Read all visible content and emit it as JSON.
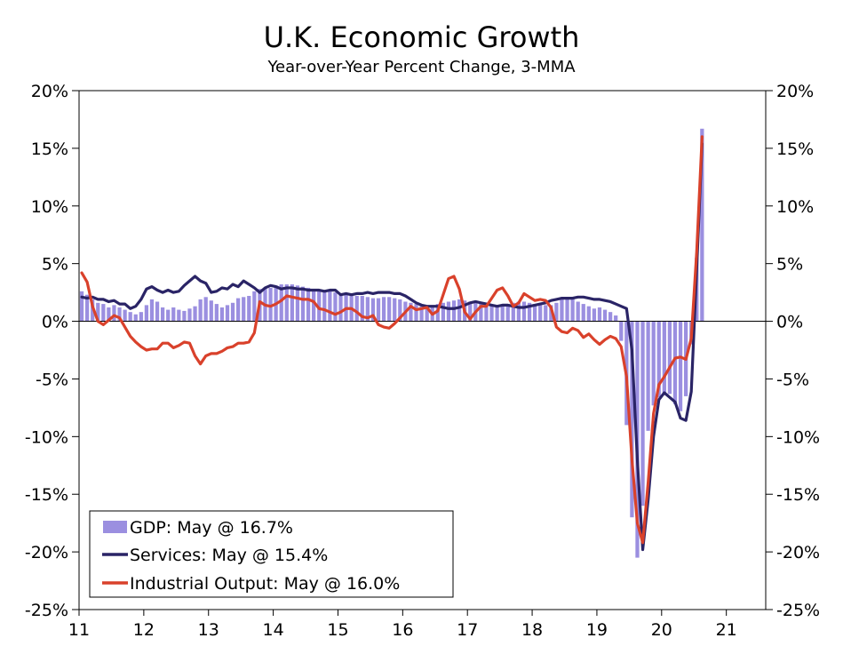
{
  "chart_data": {
    "type": "bar",
    "title": "U.K. Economic Growth",
    "subtitle": "Year-over-Year Percent Change, 3-MMA",
    "xlabel": "",
    "ylabel": "",
    "ylim": [
      -25,
      20
    ],
    "y_ticks": [
      20,
      15,
      10,
      5,
      0,
      -5,
      -10,
      -15,
      -20,
      -25
    ],
    "y_tick_labels": [
      "20%",
      "15%",
      "10%",
      "5%",
      "0%",
      "-5%",
      "-10%",
      "-15%",
      "-20%",
      "-25%"
    ],
    "x_start_year": 2011,
    "x_tick_labels": [
      "11",
      "12",
      "13",
      "14",
      "15",
      "16",
      "17",
      "18",
      "19",
      "20",
      "21"
    ],
    "legend": [
      {
        "label": "GDP: May @ 16.7%",
        "kind": "bar",
        "color": "#9b8fe0"
      },
      {
        "label": "Services: May @ 15.4%",
        "kind": "line",
        "color": "#2a2466"
      },
      {
        "label": "Industrial Output: May @ 16.0%",
        "kind": "line",
        "color": "#d9412b"
      }
    ],
    "series": [
      {
        "name": "GDP",
        "type": "bar",
        "color": "#9b8fe0",
        "values": [
          2.6,
          2.3,
          1.9,
          1.6,
          1.5,
          1.2,
          1.4,
          1.2,
          1.0,
          0.8,
          0.6,
          0.8,
          1.4,
          1.9,
          1.7,
          1.2,
          1.0,
          1.2,
          1.0,
          0.9,
          1.1,
          1.3,
          1.9,
          2.1,
          1.8,
          1.5,
          1.2,
          1.4,
          1.6,
          2.0,
          2.1,
          2.2,
          2.6,
          2.8,
          2.9,
          2.9,
          3.1,
          3.2,
          3.2,
          3.2,
          3.1,
          3.0,
          2.9,
          2.8,
          2.7,
          2.6,
          2.6,
          2.5,
          2.4,
          2.4,
          2.3,
          2.2,
          2.2,
          2.1,
          2.0,
          2.0,
          2.1,
          2.1,
          2.0,
          1.9,
          1.7,
          1.6,
          1.5,
          1.4,
          1.3,
          1.4,
          1.5,
          1.6,
          1.7,
          1.8,
          1.9,
          1.8,
          1.7,
          1.6,
          1.6,
          1.5,
          1.4,
          1.3,
          1.4,
          1.5,
          1.6,
          1.7,
          1.7,
          1.6,
          1.5,
          1.5,
          1.4,
          1.4,
          1.6,
          1.9,
          2.1,
          2.0,
          1.7,
          1.5,
          1.3,
          1.1,
          1.2,
          1.0,
          0.8,
          0.5,
          -1.7,
          -9.0,
          -17.0,
          -20.5,
          -16.0,
          -9.5,
          -7.3,
          -6.6,
          -6.4,
          -6.3,
          -7.2,
          -7.8,
          -6.5,
          -2.0,
          5.5,
          16.7
        ]
      },
      {
        "name": "Services",
        "type": "line",
        "color": "#2a2466",
        "values": [
          2.1,
          2.0,
          2.1,
          1.9,
          1.9,
          1.7,
          1.8,
          1.5,
          1.5,
          1.1,
          1.3,
          1.9,
          2.8,
          3.0,
          2.7,
          2.5,
          2.7,
          2.5,
          2.6,
          3.1,
          3.5,
          3.9,
          3.5,
          3.3,
          2.5,
          2.6,
          2.9,
          2.8,
          3.2,
          3.0,
          3.5,
          3.2,
          2.9,
          2.5,
          2.9,
          3.1,
          3.0,
          2.8,
          2.9,
          2.9,
          2.8,
          2.8,
          2.7,
          2.7,
          2.7,
          2.6,
          2.7,
          2.7,
          2.3,
          2.4,
          2.3,
          2.4,
          2.4,
          2.5,
          2.4,
          2.5,
          2.5,
          2.5,
          2.4,
          2.4,
          2.2,
          1.9,
          1.6,
          1.4,
          1.3,
          1.3,
          1.3,
          1.2,
          1.1,
          1.1,
          1.2,
          1.4,
          1.6,
          1.7,
          1.6,
          1.5,
          1.4,
          1.3,
          1.4,
          1.4,
          1.3,
          1.2,
          1.2,
          1.3,
          1.4,
          1.5,
          1.6,
          1.8,
          1.9,
          2.0,
          2.0,
          2.0,
          2.1,
          2.1,
          2.0,
          1.9,
          1.9,
          1.8,
          1.7,
          1.5,
          1.3,
          1.1,
          -2.5,
          -12.0,
          -19.8,
          -15.5,
          -10.0,
          -6.8,
          -6.2,
          -6.6,
          -7.0,
          -8.4,
          -8.6,
          -6.1,
          4.5,
          15.4
        ]
      },
      {
        "name": "Industrial Output",
        "type": "line",
        "color": "#d9412b",
        "values": [
          4.2,
          3.4,
          1.3,
          0.0,
          -0.3,
          0.1,
          0.5,
          0.3,
          -0.5,
          -1.3,
          -1.8,
          -2.2,
          -2.5,
          -2.4,
          -2.4,
          -1.9,
          -1.9,
          -2.3,
          -2.1,
          -1.8,
          -1.9,
          -3.0,
          -3.7,
          -3.0,
          -2.8,
          -2.8,
          -2.6,
          -2.3,
          -2.2,
          -1.9,
          -1.9,
          -1.8,
          -1.0,
          1.7,
          1.4,
          1.3,
          1.5,
          1.8,
          2.2,
          2.1,
          2.0,
          1.9,
          1.9,
          1.7,
          1.1,
          1.0,
          0.8,
          0.6,
          0.8,
          1.1,
          1.1,
          0.8,
          0.4,
          0.3,
          0.5,
          -0.3,
          -0.5,
          -0.6,
          -0.2,
          0.3,
          0.8,
          1.3,
          1.0,
          1.1,
          1.2,
          0.6,
          0.9,
          2.3,
          3.7,
          3.9,
          2.8,
          0.8,
          0.2,
          0.8,
          1.3,
          1.3,
          2.0,
          2.7,
          2.9,
          2.2,
          1.3,
          1.6,
          2.4,
          2.1,
          1.8,
          1.9,
          1.8,
          1.2,
          -0.5,
          -0.9,
          -1.0,
          -0.6,
          -0.8,
          -1.4,
          -1.1,
          -1.6,
          -2.0,
          -1.6,
          -1.3,
          -1.5,
          -2.2,
          -4.8,
          -12.0,
          -17.5,
          -19.2,
          -14.0,
          -8.0,
          -5.5,
          -4.8,
          -4.0,
          -3.2,
          -3.1,
          -3.3,
          -1.5,
          6.0,
          16.0
        ]
      }
    ]
  }
}
